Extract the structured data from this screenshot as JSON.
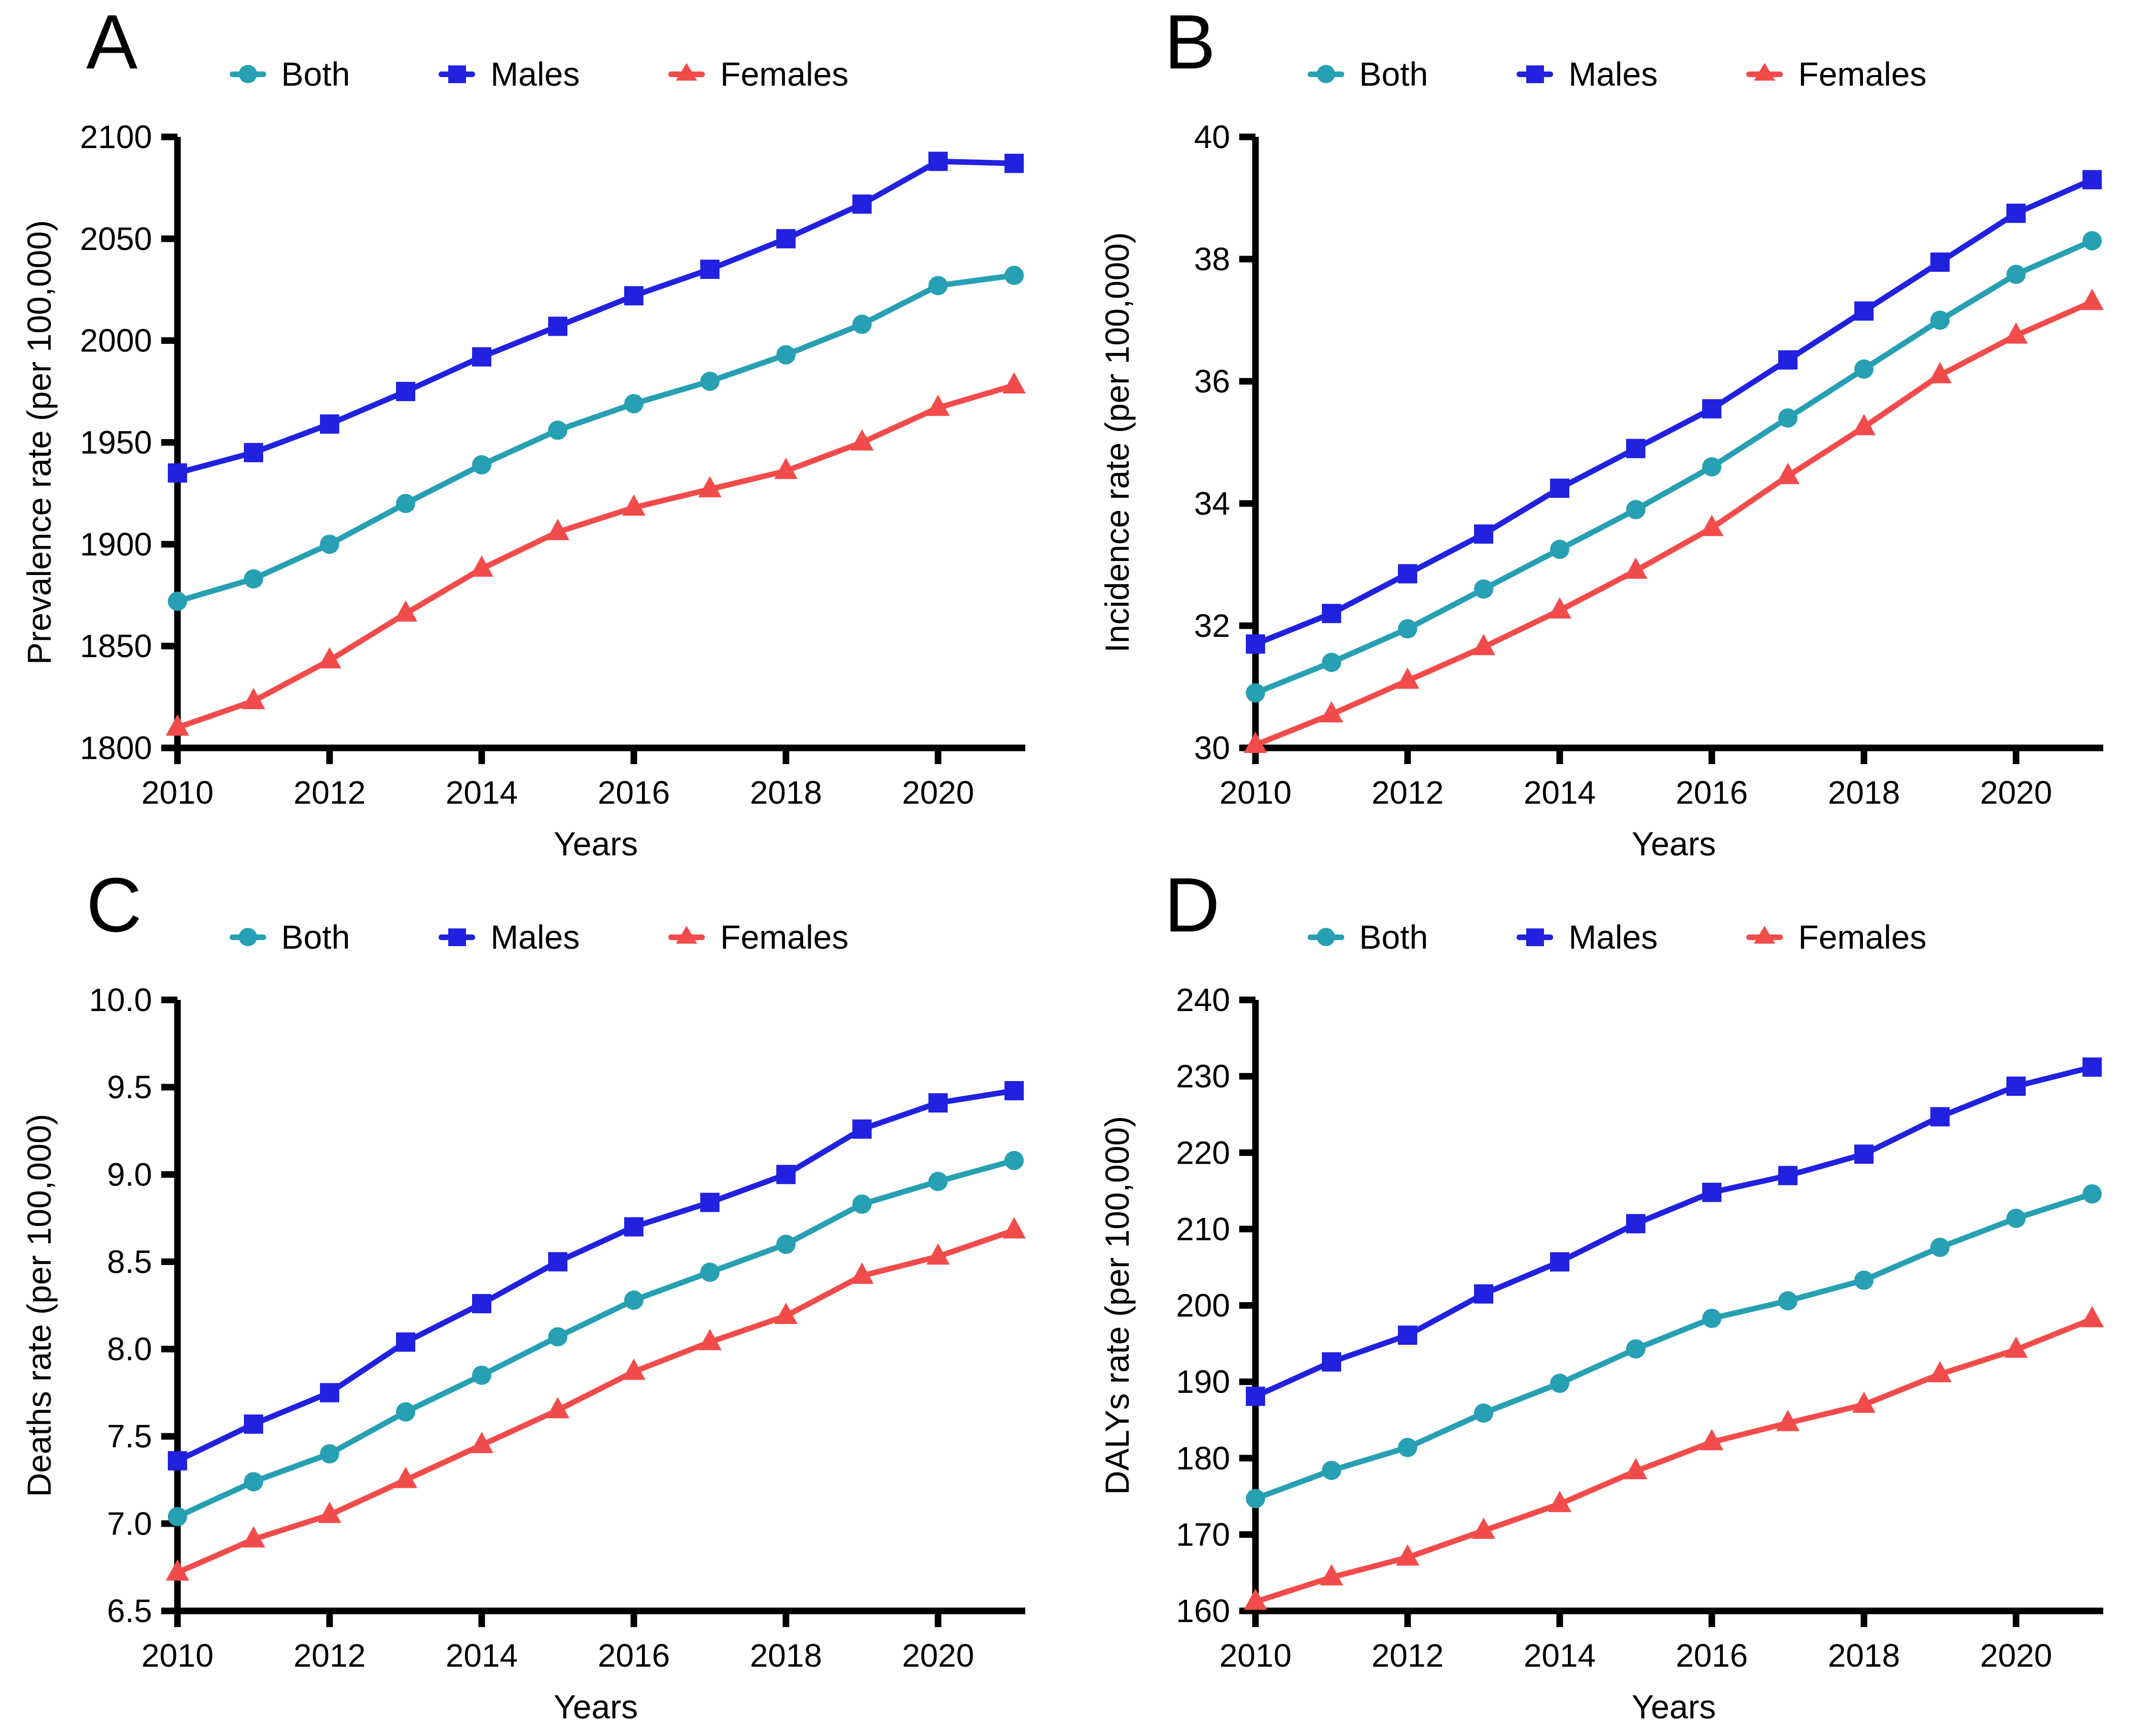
{
  "colors": {
    "both": "#26A0B2",
    "males": "#2121DF",
    "females": "#F24B4B",
    "axis": "#000000",
    "background": "#FFFFFF"
  },
  "chart_data": [
    {
      "panel": "A",
      "type": "line",
      "title": "",
      "xlabel": "Years",
      "ylabel": "Prevalence rate (per 100,000)",
      "x": [
        2010,
        2011,
        2012,
        2013,
        2014,
        2015,
        2016,
        2017,
        2018,
        2019,
        2020,
        2021
      ],
      "xticks": [
        2010,
        2012,
        2014,
        2016,
        2018,
        2020
      ],
      "ylim": [
        1800,
        2100
      ],
      "ytick_step": 50,
      "ytick_decimals": 0,
      "grid": false,
      "legend_position": "top",
      "series": [
        {
          "name": "Both",
          "marker": "circle",
          "color_key": "both",
          "values": [
            1872,
            1883,
            1900,
            1920,
            1939,
            1956,
            1969,
            1980,
            1993,
            2008,
            2027,
            2032
          ]
        },
        {
          "name": "Males",
          "marker": "square",
          "color_key": "males",
          "values": [
            1935,
            1945,
            1959,
            1975,
            1992,
            2007,
            2022,
            2035,
            2050,
            2067,
            2088,
            2087
          ]
        },
        {
          "name": "Females",
          "marker": "triangle",
          "color_key": "females",
          "values": [
            1810,
            1823,
            1843,
            1866,
            1888,
            1906,
            1918,
            1927,
            1936,
            1950,
            1967,
            1978
          ]
        }
      ]
    },
    {
      "panel": "B",
      "type": "line",
      "title": "",
      "xlabel": "Years",
      "ylabel": "Incidence rate (per 100,000)",
      "x": [
        2010,
        2011,
        2012,
        2013,
        2014,
        2015,
        2016,
        2017,
        2018,
        2019,
        2020,
        2021
      ],
      "xticks": [
        2010,
        2012,
        2014,
        2016,
        2018,
        2020
      ],
      "ylim": [
        30,
        40
      ],
      "ytick_step": 2,
      "ytick_decimals": 0,
      "grid": false,
      "legend_position": "top",
      "series": [
        {
          "name": "Both",
          "marker": "circle",
          "color_key": "both",
          "values": [
            30.9,
            31.4,
            31.95,
            32.6,
            33.25,
            33.9,
            34.6,
            35.4,
            36.2,
            37.0,
            37.75,
            38.3
          ]
        },
        {
          "name": "Males",
          "marker": "square",
          "color_key": "males",
          "values": [
            31.7,
            32.2,
            32.85,
            33.5,
            34.25,
            34.9,
            35.55,
            36.35,
            37.15,
            37.95,
            38.75,
            39.3
          ]
        },
        {
          "name": "Females",
          "marker": "triangle",
          "color_key": "females",
          "values": [
            30.05,
            30.55,
            31.1,
            31.65,
            32.25,
            32.9,
            33.6,
            34.45,
            35.25,
            36.1,
            36.75,
            37.3
          ]
        }
      ]
    },
    {
      "panel": "C",
      "type": "line",
      "title": "",
      "xlabel": "Years",
      "ylabel": "Deaths rate (per 100,000)",
      "x": [
        2010,
        2011,
        2012,
        2013,
        2014,
        2015,
        2016,
        2017,
        2018,
        2019,
        2020,
        2021
      ],
      "xticks": [
        2010,
        2012,
        2014,
        2016,
        2018,
        2020
      ],
      "ylim": [
        6.5,
        10.0
      ],
      "ytick_step": 0.5,
      "ytick_decimals": 1,
      "grid": false,
      "legend_position": "top",
      "series": [
        {
          "name": "Both",
          "marker": "circle",
          "color_key": "both",
          "values": [
            7.04,
            7.24,
            7.4,
            7.64,
            7.85,
            8.07,
            8.28,
            8.44,
            8.6,
            8.83,
            8.96,
            9.08
          ]
        },
        {
          "name": "Males",
          "marker": "square",
          "color_key": "males",
          "values": [
            7.36,
            7.57,
            7.75,
            8.04,
            8.26,
            8.5,
            8.7,
            8.84,
            9.0,
            9.26,
            9.41,
            9.48
          ]
        },
        {
          "name": "Females",
          "marker": "triangle",
          "color_key": "females",
          "values": [
            6.72,
            6.91,
            7.05,
            7.25,
            7.45,
            7.65,
            7.87,
            8.04,
            8.19,
            8.42,
            8.53,
            8.68
          ]
        }
      ]
    },
    {
      "panel": "D",
      "type": "line",
      "title": "",
      "xlabel": "Years",
      "ylabel": "DALYs rate (per 100,000)",
      "x": [
        2010,
        2011,
        2012,
        2013,
        2014,
        2015,
        2016,
        2017,
        2018,
        2019,
        2020,
        2021
      ],
      "xticks": [
        2010,
        2012,
        2014,
        2016,
        2018,
        2020
      ],
      "ylim": [
        160,
        240
      ],
      "ytick_step": 10,
      "ytick_decimals": 0,
      "grid": false,
      "legend_position": "top",
      "series": [
        {
          "name": "Both",
          "marker": "circle",
          "color_key": "both",
          "values": [
            174.7,
            178.4,
            181.4,
            185.9,
            189.8,
            194.3,
            198.3,
            200.6,
            203.3,
            207.6,
            211.4,
            214.6
          ]
        },
        {
          "name": "Males",
          "marker": "square",
          "color_key": "males",
          "values": [
            188.1,
            192.6,
            196.1,
            201.5,
            205.7,
            210.7,
            214.8,
            217.0,
            219.8,
            224.7,
            228.7,
            231.2
          ]
        },
        {
          "name": "Females",
          "marker": "triangle",
          "color_key": "females",
          "values": [
            161.2,
            164.4,
            167.0,
            170.5,
            174.0,
            178.3,
            182.1,
            184.6,
            187.0,
            191.0,
            194.2,
            198.2
          ]
        }
      ]
    }
  ]
}
